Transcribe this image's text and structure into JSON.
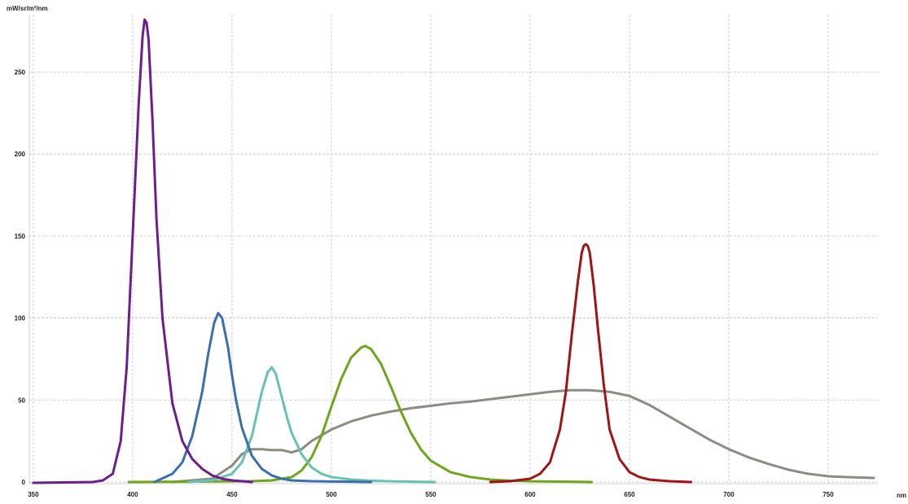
{
  "chart_data": {
    "type": "line",
    "title": "",
    "ylabel": "mW/sr/m²/nm",
    "xlabel": "nm",
    "xlim": [
      348,
      775
    ],
    "ylim": [
      -1,
      285
    ],
    "xticks": [
      350,
      400,
      450,
      500,
      550,
      600,
      650,
      700,
      750
    ],
    "yticks": [
      0,
      50,
      100,
      150,
      200,
      250
    ],
    "grid": true,
    "legend": "none",
    "series": [
      {
        "color": "#6e1e8c",
        "x": [
          350,
          380,
          385,
          390,
          394,
          397,
          400,
          403,
          405,
          406,
          407,
          408,
          410,
          412,
          415,
          420,
          425,
          430,
          435,
          440,
          445,
          450,
          455,
          460
        ],
        "y": [
          -0.5,
          0,
          1,
          5,
          25,
          70,
          150,
          230,
          272,
          282,
          280,
          270,
          220,
          160,
          100,
          48,
          25,
          14,
          8,
          4,
          2,
          1,
          0.5,
          0
        ]
      },
      {
        "color": "#3a6fae",
        "x": [
          411,
          420,
          425,
          430,
          435,
          438,
          441,
          443,
          445,
          448,
          450,
          452,
          455,
          460,
          465,
          470,
          475,
          480,
          490,
          500,
          510,
          520
        ],
        "y": [
          0,
          5,
          12,
          28,
          55,
          78,
          97,
          103,
          100,
          82,
          65,
          50,
          33,
          16,
          8,
          4,
          2,
          1,
          0.5,
          0.3,
          0.2,
          0
        ]
      },
      {
        "color": "#66c2b2",
        "x": [
          428,
          440,
          450,
          455,
          460,
          465,
          468,
          470,
          472,
          475,
          478,
          480,
          485,
          490,
          495,
          500,
          510,
          520,
          530,
          552
        ],
        "y": [
          0,
          1,
          5,
          12,
          28,
          55,
          67,
          70,
          66,
          52,
          38,
          30,
          17,
          9,
          5,
          3,
          1.5,
          0.8,
          0.4,
          0
        ]
      },
      {
        "color": "#6ea61e",
        "x": [
          398,
          460,
          470,
          480,
          485,
          490,
          495,
          500,
          505,
          510,
          515,
          517,
          520,
          525,
          530,
          535,
          540,
          545,
          550,
          560,
          570,
          580,
          590,
          600,
          620,
          631
        ],
        "y": [
          0,
          0.5,
          1,
          3,
          7,
          15,
          28,
          46,
          63,
          76,
          82,
          83,
          81,
          72,
          58,
          43,
          30,
          20,
          13,
          6,
          3,
          1.5,
          0.8,
          0.4,
          0.2,
          0
        ]
      },
      {
        "color": "#8c8c84",
        "x": [
          420,
          440,
          450,
          455,
          460,
          465,
          470,
          475,
          480,
          485,
          490,
          500,
          510,
          520,
          530,
          540,
          550,
          560,
          570,
          580,
          590,
          600,
          610,
          620,
          630,
          640,
          650,
          660,
          670,
          680,
          690,
          700,
          710,
          720,
          730,
          740,
          750,
          760,
          773
        ],
        "y": [
          0,
          2,
          10,
          17,
          20,
          20,
          19.5,
          19.5,
          18,
          20,
          25,
          32,
          37,
          40.5,
          43,
          45,
          46.5,
          48,
          49,
          50.5,
          52,
          53.5,
          55,
          56,
          56,
          55,
          52.5,
          47,
          40,
          33,
          26,
          20,
          15,
          11,
          7.5,
          5,
          3.5,
          3,
          2.5
        ]
      },
      {
        "color": "#a01414",
        "x": [
          580,
          590,
          600,
          605,
          610,
          615,
          618,
          621,
          624,
          626,
          627,
          628,
          629,
          630,
          632,
          634,
          637,
          640,
          645,
          650,
          655,
          660,
          670,
          681
        ],
        "y": [
          0,
          0.5,
          2,
          5,
          12,
          32,
          55,
          90,
          122,
          140,
          144,
          145,
          144,
          140,
          120,
          95,
          60,
          32,
          14,
          6,
          3,
          1.5,
          0.5,
          0
        ]
      }
    ]
  }
}
